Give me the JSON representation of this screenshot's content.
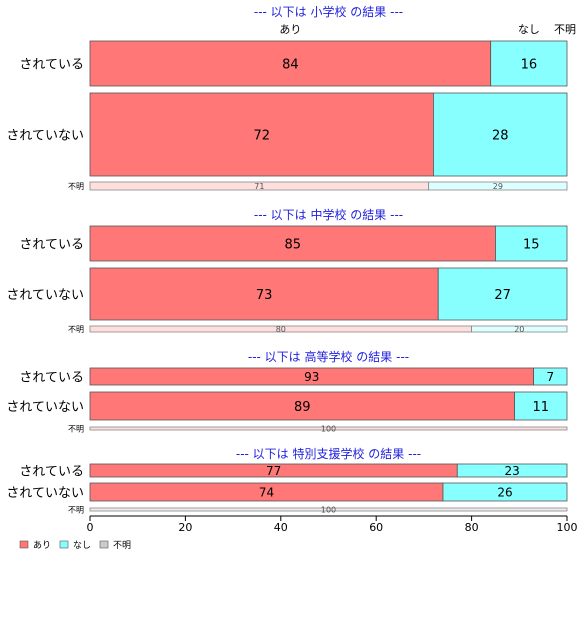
{
  "chart_data": {
    "type": "bar",
    "orientation": "horizontal",
    "stacked": true,
    "xlim": [
      0,
      100
    ],
    "xticks": [
      0,
      20,
      40,
      60,
      80,
      100
    ],
    "colors": {
      "あり": "#ff7777",
      "なし": "#88ffff",
      "不明": "#cccccc",
      "title": "#1f1fe0"
    },
    "column_headers": [
      "あり",
      "なし",
      "不明"
    ],
    "legend": {
      "position": "bottom-left",
      "entries": [
        "あり",
        "なし",
        "不明"
      ]
    },
    "series_names": [
      "あり",
      "なし",
      "不明"
    ],
    "groups": [
      {
        "title": "--- 以下は 小学校 の結果 ---",
        "rows": [
          {
            "label": "されている",
            "values": [
              84,
              16,
              0
            ],
            "faded": false
          },
          {
            "label": "されていない",
            "values": [
              72,
              28,
              0
            ],
            "faded": false
          },
          {
            "label": "不明",
            "values": [
              71,
              29,
              0
            ],
            "faded": true
          }
        ]
      },
      {
        "title": "--- 以下は 中学校 の結果 ---",
        "rows": [
          {
            "label": "されている",
            "values": [
              85,
              15,
              0
            ],
            "faded": false
          },
          {
            "label": "されていない",
            "values": [
              73,
              27,
              0
            ],
            "faded": false
          },
          {
            "label": "不明",
            "values": [
              80,
              20,
              0
            ],
            "faded": true
          }
        ]
      },
      {
        "title": "--- 以下は 高等学校 の結果 ---",
        "rows": [
          {
            "label": "されている",
            "values": [
              93,
              7,
              0
            ],
            "faded": false
          },
          {
            "label": "されていない",
            "values": [
              89,
              11,
              0
            ],
            "faded": false
          },
          {
            "label": "不明",
            "values": [
              100,
              0,
              0
            ],
            "faded": true
          }
        ]
      },
      {
        "title": "--- 以下は 特別支援学校 の結果 ---",
        "rows": [
          {
            "label": "されている",
            "values": [
              77,
              23,
              0
            ],
            "faded": false
          },
          {
            "label": "されていない",
            "values": [
              74,
              26,
              0
            ],
            "faded": false
          },
          {
            "label": "不明",
            "values": [
              0,
              0,
              100
            ],
            "faded": true
          }
        ]
      }
    ]
  }
}
